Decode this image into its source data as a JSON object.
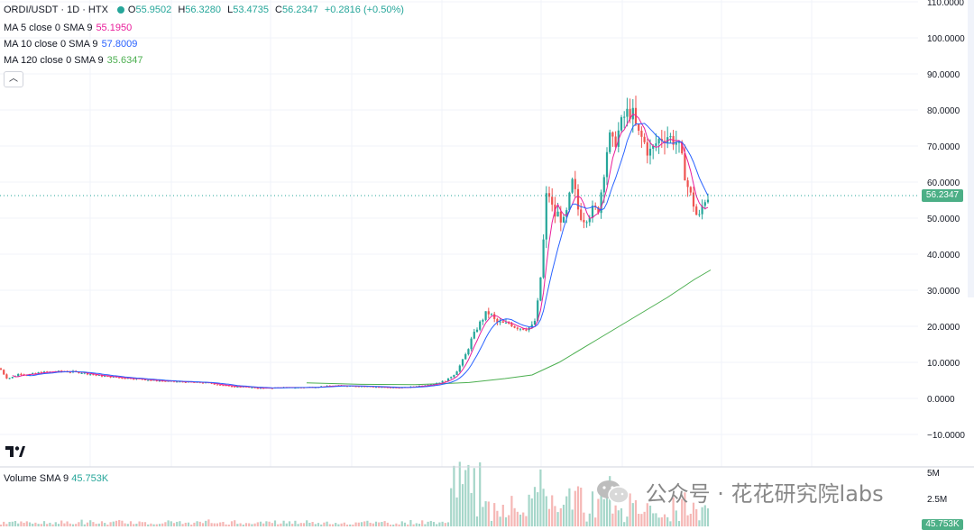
{
  "header": {
    "symbol": "ORDI/USDT · 1D · HTX",
    "open_label": "O",
    "open": "55.9502",
    "high_label": "H",
    "high": "56.3280",
    "low_label": "L",
    "low": "53.4735",
    "close_label": "C",
    "close": "56.2347",
    "change": "+0.2816 (+0.50%)"
  },
  "indicators": [
    {
      "label": "MA 5 close 0 SMA 9",
      "value": "55.1950",
      "color": "#e91e9b"
    },
    {
      "label": "MA 10 close 0 SMA 9",
      "value": "57.8009",
      "color": "#2962ff"
    },
    {
      "label": "MA 120 close 0 SMA 9",
      "value": "35.6347",
      "color": "#4caf50"
    }
  ],
  "collapse_icon": "chevron-up-icon",
  "volume": {
    "label": "Volume SMA 9",
    "value": "45.753K",
    "axis_labels": [
      "5M",
      "2.5M"
    ],
    "last_tag": "45.753K"
  },
  "current_price_tag": "56.2347",
  "watermark": {
    "text": "公众号 · 花花研究院labs",
    "icon": "wechat-icon"
  },
  "colors": {
    "up": "#26a69a",
    "down": "#ef5350",
    "ma5": "#e91e9b",
    "ma10": "#2962ff",
    "ma120": "#4caf50",
    "grid": "#f0f3fa",
    "axis_text": "#131722"
  },
  "chart_data": {
    "type": "candlestick",
    "title": "ORDI/USDT · 1D · HTX",
    "y_axis_ticks": [
      "110.0000",
      "100.0000",
      "90.0000",
      "80.0000",
      "70.0000",
      "60.0000",
      "50.0000",
      "40.0000",
      "30.0000",
      "20.0000",
      "10.0000",
      "0.0000",
      "−10.0000"
    ],
    "ylim": [
      -15,
      110
    ],
    "price_anchors": [
      [
        0,
        8.3
      ],
      [
        5,
        6.5
      ],
      [
        8,
        5.5
      ],
      [
        15,
        6
      ],
      [
        22,
        7
      ],
      [
        30,
        6.5
      ],
      [
        45,
        7.2
      ],
      [
        70,
        7.5
      ],
      [
        90,
        7.2
      ],
      [
        110,
        6.3
      ],
      [
        130,
        5.8
      ],
      [
        150,
        5.5
      ],
      [
        170,
        5
      ],
      [
        190,
        4.7
      ],
      [
        210,
        4.5
      ],
      [
        230,
        4.3
      ],
      [
        250,
        3.5
      ],
      [
        270,
        3.2
      ],
      [
        290,
        2.8
      ],
      [
        310,
        3
      ],
      [
        330,
        3
      ],
      [
        350,
        3.2
      ],
      [
        370,
        3.5
      ],
      [
        390,
        3.5
      ],
      [
        410,
        3.3
      ],
      [
        430,
        3
      ],
      [
        450,
        3
      ],
      [
        465,
        3.5
      ],
      [
        480,
        4
      ],
      [
        495,
        5
      ],
      [
        505,
        7
      ],
      [
        512,
        10
      ],
      [
        518,
        13
      ],
      [
        522,
        16
      ],
      [
        526,
        18
      ],
      [
        530,
        20
      ],
      [
        535,
        22
      ],
      [
        540,
        24
      ],
      [
        545,
        23
      ],
      [
        550,
        21
      ],
      [
        555,
        21
      ],
      [
        560,
        20.5
      ],
      [
        565,
        21
      ],
      [
        570,
        20
      ],
      [
        578,
        19.5
      ],
      [
        585,
        19.5
      ],
      [
        590,
        20
      ],
      [
        594,
        22
      ],
      [
        597,
        28
      ],
      [
        600,
        35
      ],
      [
        603,
        45
      ],
      [
        605,
        55
      ],
      [
        608,
        58
      ],
      [
        610,
        55
      ],
      [
        613,
        52
      ],
      [
        617,
        50
      ],
      [
        620,
        52
      ],
      [
        624,
        48
      ],
      [
        627,
        50
      ],
      [
        630,
        53
      ],
      [
        634,
        60
      ],
      [
        637,
        58
      ],
      [
        640,
        53
      ],
      [
        644,
        51
      ],
      [
        648,
        50
      ],
      [
        652,
        51
      ],
      [
        656,
        52
      ],
      [
        660,
        52
      ],
      [
        664,
        53
      ],
      [
        668,
        60
      ],
      [
        672,
        68
      ],
      [
        676,
        72
      ],
      [
        680,
        70
      ],
      [
        684,
        73
      ],
      [
        688,
        75
      ],
      [
        692,
        78
      ],
      [
        696,
        79
      ],
      [
        700,
        80
      ],
      [
        704,
        76
      ],
      [
        708,
        73
      ],
      [
        712,
        72
      ],
      [
        716,
        70
      ],
      [
        720,
        68
      ],
      [
        724,
        69
      ],
      [
        728,
        71
      ],
      [
        732,
        72
      ],
      [
        736,
        73
      ],
      [
        740,
        73
      ],
      [
        744,
        72
      ],
      [
        748,
        72
      ],
      [
        752,
        70
      ],
      [
        756,
        66
      ],
      [
        760,
        62
      ],
      [
        764,
        57
      ],
      [
        768,
        55
      ],
      [
        772,
        51
      ],
      [
        776,
        50
      ],
      [
        780,
        55
      ],
      [
        784,
        56
      ],
      [
        788,
        56.2347
      ]
    ],
    "series": [
      {
        "name": "MA 5",
        "color": "#e91e9b",
        "last_value": 55.195
      },
      {
        "name": "MA 10",
        "color": "#2962ff",
        "last_value": 57.8009
      },
      {
        "name": "MA 120",
        "color": "#4caf50",
        "last_value": 35.6347
      }
    ],
    "ma120_points": [
      [
        340,
        4.3
      ],
      [
        400,
        3.9
      ],
      [
        460,
        3.8
      ],
      [
        520,
        4.4
      ],
      [
        560,
        5.5
      ],
      [
        590,
        6.5
      ],
      [
        620,
        10
      ],
      [
        660,
        16
      ],
      [
        700,
        22
      ],
      [
        740,
        28
      ],
      [
        770,
        33
      ],
      [
        788,
        35.6347
      ]
    ],
    "current_price": 56.2347
  }
}
